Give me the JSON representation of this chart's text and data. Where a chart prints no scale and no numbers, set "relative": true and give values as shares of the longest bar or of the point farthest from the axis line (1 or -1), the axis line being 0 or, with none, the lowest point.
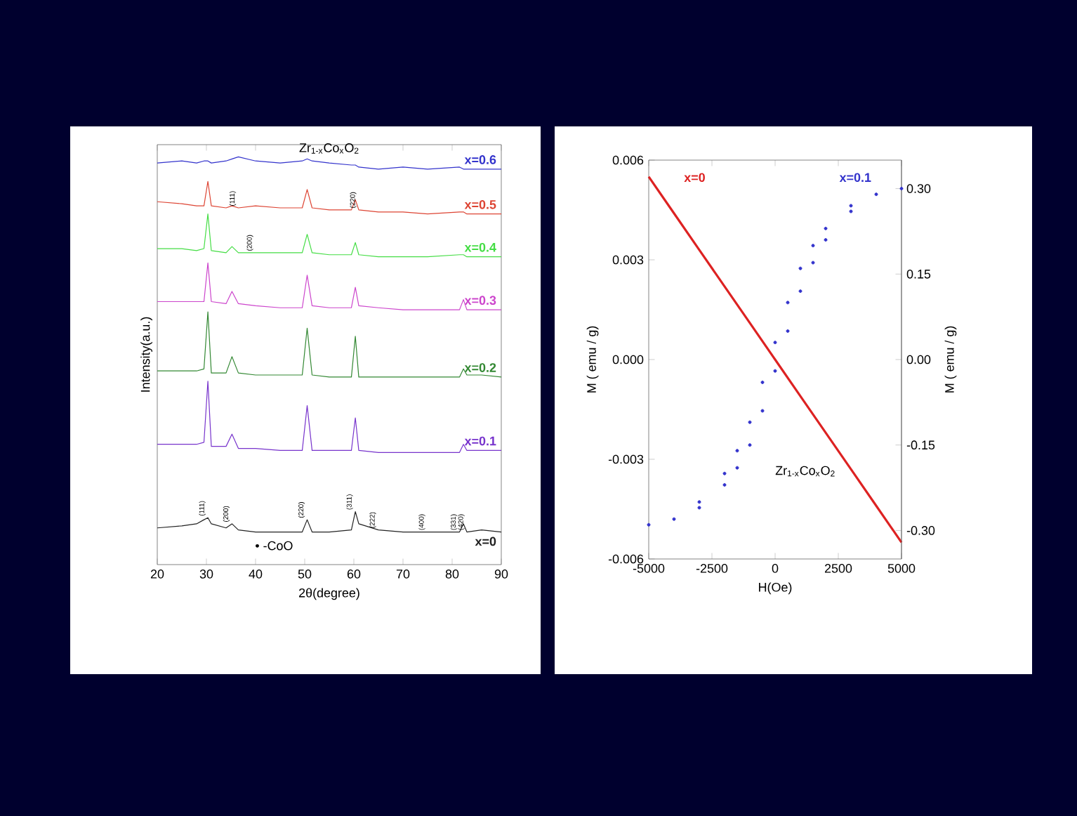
{
  "chart_data": [
    {
      "type": "line",
      "title": "Zr$_{1-x}$Co$_{x}$O$_{2}$",
      "xlabel": "2θ(degree)",
      "ylabel": "Intensity(a.u.)",
      "relative": true,
      "tick_labels": "x",
      "x": [
        20,
        25,
        28,
        29.5,
        30.3,
        31,
        34,
        35.2,
        36.5,
        40,
        45,
        49.5,
        50.5,
        51.5,
        55,
        59.5,
        60.3,
        61,
        65,
        70,
        75,
        81.5,
        82.3,
        83,
        86,
        90
      ],
      "xlim": [
        20,
        90
      ],
      "xticks": [
        20,
        30,
        40,
        50,
        60,
        70,
        80,
        90
      ],
      "series": [
        {
          "name": "x=0.6",
          "color": "#3333cc",
          "values": [
            0.985,
            0.99,
            0.985,
            0.99,
            0.99,
            0.985,
            0.99,
            0.995,
            1.0,
            0.99,
            0.985,
            0.99,
            0.995,
            0.99,
            0.985,
            0.98,
            0.98,
            0.975,
            0.97,
            0.975,
            0.97,
            0.975,
            0.97,
            0.97,
            0.97,
            0.97
          ]
        },
        {
          "name": "x=0.5",
          "color": "#dd4433",
          "values": [
            0.89,
            0.885,
            0.88,
            0.88,
            0.94,
            0.88,
            0.875,
            0.88,
            0.875,
            0.88,
            0.875,
            0.875,
            0.92,
            0.875,
            0.87,
            0.87,
            0.895,
            0.87,
            0.865,
            0.865,
            0.86,
            0.865,
            0.865,
            0.86,
            0.86,
            0.86
          ]
        },
        {
          "name": "x=0.4",
          "color": "#44dd44",
          "values": [
            0.775,
            0.775,
            0.77,
            0.775,
            0.86,
            0.77,
            0.765,
            0.78,
            0.765,
            0.765,
            0.765,
            0.765,
            0.81,
            0.765,
            0.76,
            0.76,
            0.79,
            0.76,
            0.755,
            0.755,
            0.755,
            0.76,
            0.76,
            0.755,
            0.755,
            0.755
          ]
        },
        {
          "name": "x=0.3",
          "color": "#cc44cc",
          "values": [
            0.645,
            0.645,
            0.645,
            0.645,
            0.74,
            0.645,
            0.64,
            0.67,
            0.64,
            0.635,
            0.63,
            0.63,
            0.71,
            0.635,
            0.63,
            0.63,
            0.68,
            0.635,
            0.63,
            0.625,
            0.625,
            0.625,
            0.65,
            0.625,
            0.625,
            0.625
          ]
        },
        {
          "name": "x=0.2",
          "color": "#338833",
          "values": [
            0.475,
            0.475,
            0.475,
            0.48,
            0.62,
            0.47,
            0.47,
            0.51,
            0.47,
            0.465,
            0.465,
            0.465,
            0.58,
            0.465,
            0.46,
            0.46,
            0.56,
            0.46,
            0.46,
            0.46,
            0.46,
            0.46,
            0.48,
            0.465,
            0.465,
            0.46
          ]
        },
        {
          "name": "x=0.1",
          "color": "#7733cc",
          "values": [
            0.295,
            0.295,
            0.295,
            0.3,
            0.45,
            0.29,
            0.29,
            0.32,
            0.285,
            0.285,
            0.28,
            0.28,
            0.39,
            0.28,
            0.28,
            0.28,
            0.36,
            0.28,
            0.275,
            0.275,
            0.275,
            0.275,
            0.295,
            0.28,
            0.28,
            0.28
          ]
        },
        {
          "name": "x=0",
          "color": "#222222",
          "values": [
            0.09,
            0.095,
            0.1,
            0.11,
            0.115,
            0.1,
            0.09,
            0.1,
            0.085,
            0.08,
            0.08,
            0.08,
            0.11,
            0.08,
            0.08,
            0.085,
            0.13,
            0.1,
            0.085,
            0.08,
            0.08,
            0.08,
            0.1,
            0.08,
            0.085,
            0.08
          ]
        }
      ],
      "annotations": [
        {
          "text": "(111)",
          "x": 30.3,
          "y": 0.115
        },
        {
          "text": "(200)",
          "x": 35.2,
          "y": 0.1
        },
        {
          "text": "(220)",
          "x": 50.5,
          "y": 0.11
        },
        {
          "text": "(311)",
          "x": 60.3,
          "y": 0.13
        },
        {
          "text": "(222)",
          "x": 65,
          "y": 0.085
        },
        {
          "text": "(400)",
          "x": 75,
          "y": 0.08
        },
        {
          "text": "(331)",
          "x": 81.5,
          "y": 0.08
        },
        {
          "text": "(420)",
          "x": 83,
          "y": 0.08
        },
        {
          "text": "(111)",
          "x": 36.5,
          "y": 0.875
        },
        {
          "text": "(200)",
          "x": 40,
          "y": 0.765
        },
        {
          "text": "(220)",
          "x": 61,
          "y": 0.87
        },
        "• -CoO"
      ]
    },
    {
      "type": "line",
      "xlabel": "H(Oe)",
      "ylabel": "M ( emu / g)",
      "y2label": "M ( emu / g)",
      "xlim": [
        -5000,
        5000
      ],
      "xticks": [
        -5000,
        -2500,
        0,
        2500,
        5000
      ],
      "ylim": [
        -0.006,
        0.006
      ],
      "yticks": [
        -0.006,
        -0.003,
        {
          "value": 0,
          "label": "0.000"
        },
        0.003,
        0.006
      ],
      "y2lim": [
        -0.35,
        0.35
      ],
      "y2ticks": [
        {
          "value": -0.3,
          "label": "-0.30"
        },
        -0.15,
        {
          "value": 0,
          "label": "0.00"
        },
        0.15,
        {
          "value": 0.3,
          "label": "0.30"
        }
      ],
      "series": [
        {
          "name": "x=0",
          "color": "#dd2222",
          "axis": "y",
          "marker": "none",
          "x": [
            -5000,
            -4000,
            -3000,
            -2000,
            -1000,
            0,
            1000,
            2000,
            3000,
            4000,
            5000
          ],
          "values": [
            0.0055,
            0.0044,
            0.0033,
            0.0022,
            0.0011,
            0.0,
            -0.0011,
            -0.0022,
            -0.0033,
            -0.0044,
            -0.0055
          ]
        },
        {
          "name": "x=0.1",
          "type": "scatter",
          "color": "#3333cc",
          "axis": "y2",
          "marker": "circle",
          "x": [
            5000,
            4000,
            3000,
            2000,
            1500,
            1000,
            500,
            0,
            -500,
            -1000,
            -1500,
            -2000,
            -3000,
            -4000,
            -5000,
            -3000,
            -2000,
            -1500,
            -1000,
            -500,
            0,
            500,
            1000,
            1500,
            2000,
            3000
          ],
          "values": [
            0.3,
            0.29,
            0.27,
            0.23,
            0.2,
            0.16,
            0.1,
            0.03,
            -0.04,
            -0.11,
            -0.16,
            -0.2,
            -0.25,
            -0.28,
            -0.29,
            -0.26,
            -0.22,
            -0.19,
            -0.15,
            -0.09,
            -0.02,
            0.05,
            0.12,
            0.17,
            0.21,
            0.26
          ]
        }
      ],
      "annotations": [
        "Zr$_{1-x}$Co$_{x}$O$_{2}$"
      ]
    }
  ]
}
